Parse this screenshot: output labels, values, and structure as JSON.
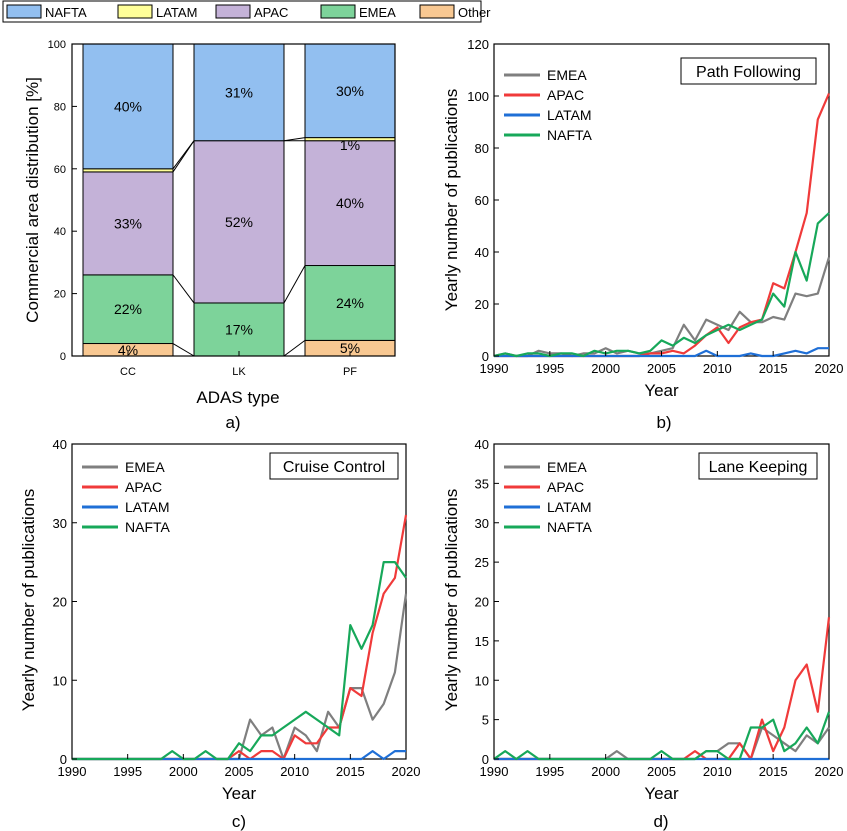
{
  "colors": {
    "NAFTA": "#92bff0",
    "LATAM": "#ffff99",
    "APAC": "#c4b2d8",
    "EMEA": "#7dd39a",
    "Other": "#f8c892",
    "line_EMEA": "#7f7f7f",
    "line_APAC": "#f03a3a",
    "line_LATAM": "#1f6fd6",
    "line_NAFTA": "#17a85a"
  },
  "chart_data": [
    {
      "type": "bar",
      "stacked": true,
      "panel_label": "a)",
      "xlabel": "ADAS type",
      "ylabel": "Commercial area distribution [%]",
      "ylim": [
        0,
        100
      ],
      "yticks": [
        0,
        20,
        40,
        60,
        80,
        100
      ],
      "categories": [
        "CC",
        "LK",
        "PF"
      ],
      "legend": [
        "NAFTA",
        "LATAM",
        "APAC",
        "EMEA",
        "Other"
      ],
      "legend_placement": "top",
      "series": [
        {
          "name": "Other",
          "values": [
            4,
            0,
            5
          ],
          "labels": [
            "4%",
            "",
            "5%"
          ]
        },
        {
          "name": "EMEA",
          "values": [
            22,
            17,
            24
          ],
          "labels": [
            "22%",
            "17%",
            "24%"
          ]
        },
        {
          "name": "APAC",
          "values": [
            33,
            52,
            40
          ],
          "labels": [
            "33%",
            "52%",
            "40%"
          ]
        },
        {
          "name": "LATAM",
          "values": [
            1,
            0,
            1
          ],
          "labels": [
            "",
            "",
            "1%"
          ]
        },
        {
          "name": "NAFTA",
          "values": [
            40,
            31,
            30
          ],
          "labels": [
            "40%",
            "31%",
            "30%"
          ]
        }
      ]
    },
    {
      "type": "line",
      "panel_label": "b)",
      "title": "Path Following",
      "xlabel": "Year",
      "ylabel": "Yearly number of publications",
      "xlim": [
        1990,
        2020
      ],
      "ylim": [
        0,
        120
      ],
      "xticks": [
        1990,
        1995,
        2000,
        2005,
        2010,
        2015,
        2020
      ],
      "yticks": [
        0,
        20,
        40,
        60,
        80,
        100,
        120
      ],
      "legend_placement": "top-left",
      "x": [
        1990,
        1991,
        1992,
        1993,
        1994,
        1995,
        1996,
        1997,
        1998,
        1999,
        2000,
        2001,
        2002,
        2003,
        2004,
        2005,
        2006,
        2007,
        2008,
        2009,
        2010,
        2011,
        2012,
        2013,
        2014,
        2015,
        2016,
        2017,
        2018,
        2019,
        2020
      ],
      "series": [
        {
          "name": "EMEA",
          "values": [
            0,
            1,
            0,
            0,
            2,
            1,
            1,
            0,
            1,
            1,
            3,
            1,
            2,
            1,
            1,
            2,
            3,
            12,
            6,
            14,
            12,
            10,
            17,
            13,
            13,
            15,
            14,
            24,
            23,
            24,
            38
          ]
        },
        {
          "name": "APAC",
          "values": [
            0,
            0,
            0,
            0,
            0,
            0,
            0,
            0,
            0,
            0,
            0,
            0,
            0,
            0,
            1,
            1,
            2,
            1,
            4,
            8,
            11,
            5,
            11,
            13,
            14,
            28,
            26,
            40,
            55,
            91,
            101
          ]
        },
        {
          "name": "LATAM",
          "values": [
            0,
            0,
            0,
            0,
            0,
            0,
            0,
            0,
            0,
            0,
            0,
            0,
            0,
            0,
            0,
            0,
            0,
            0,
            0,
            2,
            0,
            0,
            0,
            1,
            0,
            0,
            1,
            2,
            1,
            3,
            3
          ]
        },
        {
          "name": "NAFTA",
          "values": [
            0,
            1,
            0,
            1,
            1,
            0,
            1,
            1,
            0,
            2,
            1,
            2,
            2,
            1,
            2,
            6,
            4,
            7,
            5,
            8,
            10,
            12,
            10,
            12,
            14,
            24,
            19,
            40,
            29,
            51,
            55
          ]
        }
      ]
    },
    {
      "type": "line",
      "panel_label": "c)",
      "title": "Cruise Control",
      "xlabel": "Year",
      "ylabel": "Yearly number of publications",
      "xlim": [
        1990,
        2020
      ],
      "ylim": [
        0,
        40
      ],
      "xticks": [
        1990,
        1995,
        2000,
        2005,
        2010,
        2015,
        2020
      ],
      "yticks": [
        0,
        10,
        20,
        30,
        40
      ],
      "legend_placement": "top-left",
      "x": [
        1990,
        1991,
        1992,
        1993,
        1994,
        1995,
        1996,
        1997,
        1998,
        1999,
        2000,
        2001,
        2002,
        2003,
        2004,
        2005,
        2006,
        2007,
        2008,
        2009,
        2010,
        2011,
        2012,
        2013,
        2014,
        2015,
        2016,
        2017,
        2018,
        2019,
        2020
      ],
      "series": [
        {
          "name": "EMEA",
          "values": [
            0,
            0,
            0,
            0,
            0,
            0,
            0,
            0,
            0,
            0,
            0,
            0,
            0,
            0,
            0,
            0,
            5,
            3,
            4,
            0,
            4,
            3,
            1,
            6,
            4,
            9,
            9,
            5,
            7,
            11,
            21
          ]
        },
        {
          "name": "APAC",
          "values": [
            0,
            0,
            0,
            0,
            0,
            0,
            0,
            0,
            0,
            0,
            0,
            0,
            0,
            0,
            0,
            1,
            0,
            1,
            1,
            0,
            3,
            2,
            2,
            4,
            4,
            9,
            8,
            16,
            21,
            23,
            31
          ]
        },
        {
          "name": "LATAM",
          "values": [
            0,
            0,
            0,
            0,
            0,
            0,
            0,
            0,
            0,
            0,
            0,
            0,
            0,
            0,
            0,
            0,
            0,
            0,
            0,
            0,
            0,
            0,
            0,
            0,
            0,
            0,
            0,
            1,
            0,
            1,
            1
          ]
        },
        {
          "name": "NAFTA",
          "values": [
            0,
            0,
            0,
            0,
            0,
            0,
            0,
            0,
            0,
            1,
            0,
            0,
            1,
            0,
            0,
            2,
            1,
            3,
            3,
            4,
            5,
            6,
            5,
            4,
            3,
            17,
            14,
            17,
            25,
            25,
            23
          ]
        }
      ]
    },
    {
      "type": "line",
      "panel_label": "d)",
      "title": "Lane Keeping",
      "xlabel": "Year",
      "ylabel": "Yearly number of publications",
      "xlim": [
        1990,
        2020
      ],
      "ylim": [
        0,
        40
      ],
      "xticks": [
        1990,
        1995,
        2000,
        2005,
        2010,
        2015,
        2020
      ],
      "yticks": [
        0,
        5,
        10,
        15,
        20,
        25,
        30,
        35,
        40
      ],
      "legend_placement": "top-left",
      "x": [
        1990,
        1991,
        1992,
        1993,
        1994,
        1995,
        1996,
        1997,
        1998,
        1999,
        2000,
        2001,
        2002,
        2003,
        2004,
        2005,
        2006,
        2007,
        2008,
        2009,
        2010,
        2011,
        2012,
        2013,
        2014,
        2015,
        2016,
        2017,
        2018,
        2019,
        2020
      ],
      "series": [
        {
          "name": "EMEA",
          "values": [
            0,
            0,
            0,
            0,
            0,
            0,
            0,
            0,
            0,
            0,
            0,
            1,
            0,
            0,
            0,
            0,
            0,
            0,
            0,
            1,
            1,
            2,
            2,
            0,
            4,
            3,
            2,
            1,
            3,
            2,
            4
          ]
        },
        {
          "name": "APAC",
          "values": [
            0,
            0,
            0,
            0,
            0,
            0,
            0,
            0,
            0,
            0,
            0,
            0,
            0,
            0,
            0,
            0,
            0,
            0,
            1,
            0,
            0,
            0,
            2,
            0,
            5,
            1,
            4,
            10,
            12,
            6,
            18
          ]
        },
        {
          "name": "LATAM",
          "values": [
            0,
            0,
            0,
            0,
            0,
            0,
            0,
            0,
            0,
            0,
            0,
            0,
            0,
            0,
            0,
            0,
            0,
            0,
            0,
            0,
            0,
            0,
            0,
            0,
            0,
            0,
            0,
            0,
            0,
            0,
            0
          ]
        },
        {
          "name": "NAFTA",
          "values": [
            0,
            1,
            0,
            1,
            0,
            0,
            0,
            0,
            0,
            0,
            0,
            0,
            0,
            0,
            0,
            1,
            0,
            0,
            0,
            1,
            1,
            0,
            0,
            4,
            4,
            5,
            1,
            2,
            4,
            2,
            6
          ]
        }
      ]
    }
  ]
}
